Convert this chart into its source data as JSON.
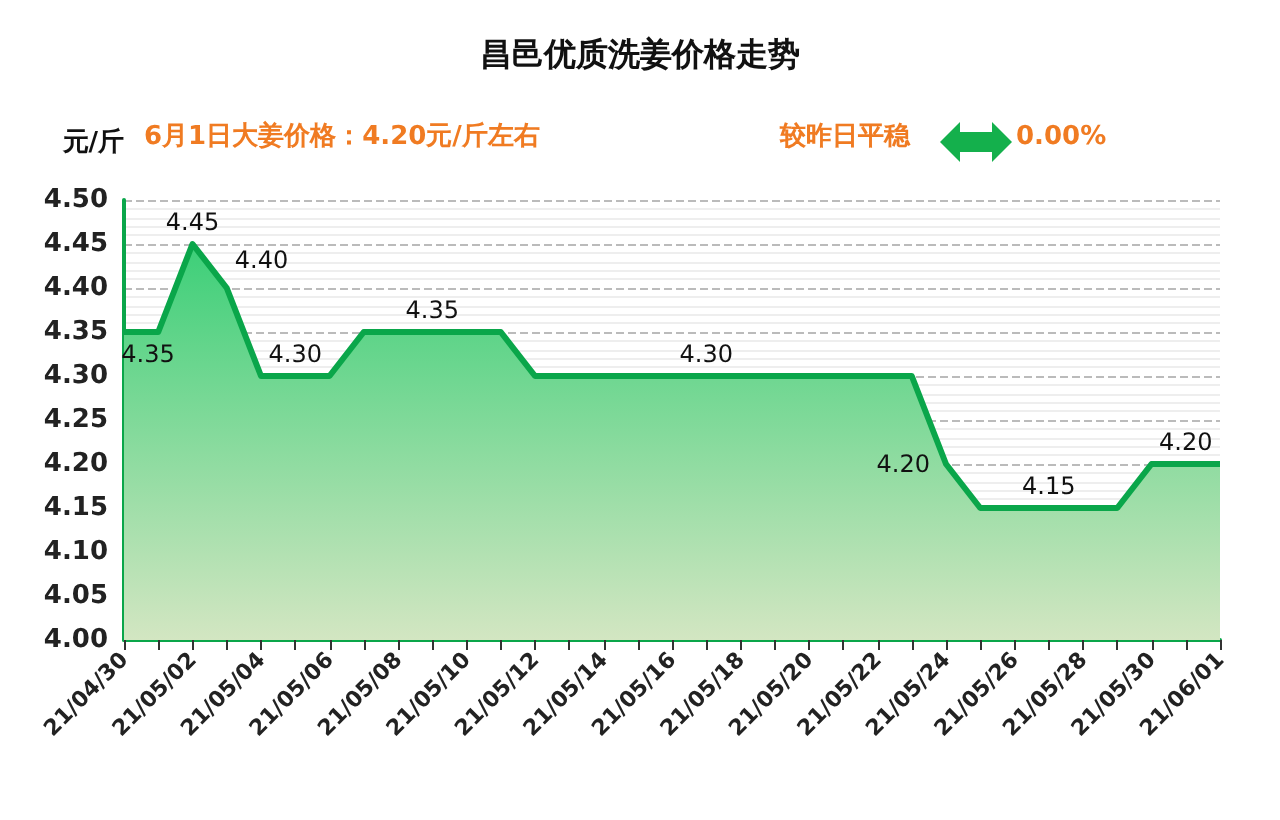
{
  "chart_data": {
    "type": "area",
    "title": "昌邑优质洗姜价格走势",
    "ylabel": "元/斤",
    "annotations": [
      "6月1日大姜价格：4.20元/斤左右",
      "较昨日平稳",
      "0.00%"
    ],
    "categories": [
      "21/04/30",
      null,
      "21/05/02",
      null,
      "21/05/04",
      null,
      "21/05/06",
      null,
      "21/05/08",
      null,
      "21/05/10",
      null,
      "21/05/12",
      null,
      "21/05/14",
      null,
      "21/05/16",
      null,
      "21/05/18",
      null,
      "21/05/20",
      null,
      "21/05/22",
      null,
      "21/05/24",
      null,
      "21/05/26",
      null,
      "21/05/28",
      null,
      "21/05/30",
      null,
      "21/06/01"
    ],
    "series": [
      {
        "color": "#0aa64a",
        "values": [
          4.35,
          4.35,
          4.45,
          4.4,
          4.3,
          4.3,
          4.3,
          4.35,
          4.35,
          4.35,
          4.35,
          4.35,
          4.3,
          4.3,
          4.3,
          4.3,
          4.3,
          4.3,
          4.3,
          4.3,
          4.3,
          4.3,
          4.3,
          4.3,
          4.2,
          4.15,
          4.15,
          4.15,
          4.15,
          4.15,
          4.2,
          4.2,
          4.2
        ],
        "value_labels": [
          "4.35",
          null,
          "4.45",
          "4.40",
          null,
          "4.30",
          null,
          null,
          null,
          "4.35",
          null,
          null,
          null,
          null,
          null,
          null,
          null,
          "4.30",
          null,
          null,
          null,
          null,
          null,
          null,
          "4.20",
          null,
          null,
          "4.15",
          null,
          null,
          null,
          "4.20",
          null
        ]
      }
    ],
    "ylim": [
      4.0,
      4.5
    ],
    "yticks": [
      {
        "value": 4.0,
        "label": "4.00"
      },
      {
        "value": 4.05,
        "label": "4.05"
      },
      {
        "value": 4.1,
        "label": "4.10"
      },
      {
        "value": 4.15,
        "label": "4.15"
      },
      {
        "value": 4.2,
        "label": "4.20"
      },
      {
        "value": 4.25,
        "label": "4.25"
      },
      {
        "value": 4.3,
        "label": "4.30"
      },
      {
        "value": 4.35,
        "label": "4.35"
      },
      {
        "value": 4.4,
        "label": "4.40"
      },
      {
        "value": 4.45,
        "label": "4.45"
      },
      {
        "value": 4.5,
        "label": "4.50"
      }
    ],
    "grid": "y",
    "marker": "none",
    "line_style": "solid"
  }
}
